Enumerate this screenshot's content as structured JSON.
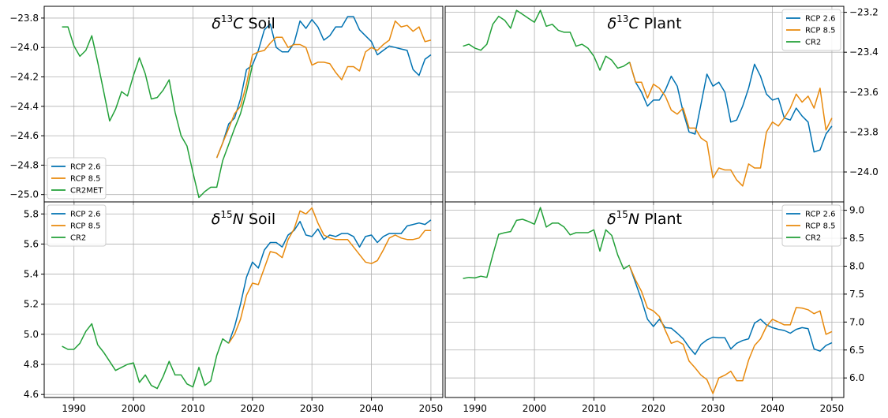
{
  "chart_data": [
    {
      "type": "line",
      "title": {
        "sym": "δ",
        "sup": "13",
        "elem": "C",
        "rest": " Soil"
      },
      "xlim": [
        1985,
        2052
      ],
      "ylim": [
        -25.05,
        -23.72
      ],
      "yticks": [
        -25.0,
        -24.8,
        -24.6,
        -24.4,
        -24.2,
        -24.0,
        -23.8
      ],
      "ytick_labels": [
        "−25.0",
        "−24.8",
        "−24.6",
        "−24.4",
        "−24.2",
        "−24.0",
        "−23.8"
      ],
      "yaxis_side": "left",
      "show_xticklabels": false,
      "grid": true,
      "legend_position": "lower-left",
      "legend": [
        "RCP 2.6",
        "RCP 8.5",
        "CR2MET"
      ],
      "series": [
        {
          "name": "RCP 2.6",
          "color": "#0072B2",
          "x": [
            2014,
            2015,
            2016,
            2017,
            2018,
            2019,
            2020,
            2021,
            2022,
            2023,
            2024,
            2025,
            2026,
            2027,
            2028,
            2029,
            2030,
            2031,
            2032,
            2033,
            2034,
            2035,
            2036,
            2037,
            2038,
            2039,
            2040,
            2041,
            2042,
            2043,
            2044,
            2045,
            2046,
            2047,
            2048,
            2049,
            2050
          ],
          "y": [
            -24.75,
            -24.65,
            -24.52,
            -24.48,
            -24.35,
            -24.15,
            -24.12,
            -24.02,
            -23.88,
            -23.84,
            -24.0,
            -24.03,
            -24.03,
            -23.97,
            -23.82,
            -23.87,
            -23.81,
            -23.86,
            -23.95,
            -23.92,
            -23.86,
            -23.86,
            -23.79,
            -23.79,
            -23.88,
            -23.92,
            -23.96,
            -24.05,
            -24.02,
            -23.99,
            -24.0,
            -24.01,
            -24.02,
            -24.15,
            -24.19,
            -24.08,
            -24.05
          ]
        },
        {
          "name": "RCP 8.5",
          "color": "#E8890C",
          "x": [
            2014,
            2015,
            2016,
            2017,
            2018,
            2019,
            2020,
            2021,
            2022,
            2023,
            2024,
            2025,
            2026,
            2027,
            2028,
            2029,
            2030,
            2031,
            2032,
            2033,
            2034,
            2035,
            2036,
            2037,
            2038,
            2039,
            2040,
            2041,
            2042,
            2043,
            2044,
            2045,
            2046,
            2047,
            2048,
            2049,
            2050
          ],
          "y": [
            -24.75,
            -24.65,
            -24.55,
            -24.45,
            -24.4,
            -24.25,
            -24.05,
            -24.03,
            -24.02,
            -23.97,
            -23.93,
            -23.93,
            -24.0,
            -23.98,
            -23.98,
            -24.0,
            -24.12,
            -24.1,
            -24.1,
            -24.11,
            -24.17,
            -24.22,
            -24.13,
            -24.13,
            -24.16,
            -24.03,
            -24.0,
            -24.02,
            -23.98,
            -23.95,
            -23.82,
            -23.86,
            -23.85,
            -23.89,
            -23.86,
            -23.96,
            -23.95
          ]
        },
        {
          "name": "CR2MET",
          "color": "#22A038",
          "x": [
            1988,
            1989,
            1990,
            1991,
            1992,
            1993,
            1994,
            1995,
            1996,
            1997,
            1998,
            1999,
            2000,
            2001,
            2002,
            2003,
            2004,
            2005,
            2006,
            2007,
            2008,
            2009,
            2010,
            2011,
            2012,
            2013,
            2014,
            2015,
            2016,
            2017,
            2018,
            2019,
            2020
          ],
          "y": [
            -23.86,
            -23.86,
            -23.99,
            -24.06,
            -24.02,
            -23.92,
            -24.1,
            -24.3,
            -24.5,
            -24.42,
            -24.3,
            -24.33,
            -24.19,
            -24.07,
            -24.18,
            -24.35,
            -24.34,
            -24.29,
            -24.22,
            -24.44,
            -24.6,
            -24.67,
            -24.85,
            -25.02,
            -24.98,
            -24.95,
            -24.95,
            -24.77,
            -24.66,
            -24.55,
            -24.45,
            -24.3,
            -24.12
          ]
        }
      ]
    },
    {
      "type": "line",
      "title": {
        "sym": "δ",
        "sup": "13",
        "elem": "C",
        "rest": " Plant"
      },
      "xlim": [
        1985,
        2052
      ],
      "ylim": [
        -24.15,
        -23.17
      ],
      "yticks": [
        -24.0,
        -23.8,
        -23.6,
        -23.4,
        -23.2
      ],
      "ytick_labels": [
        "−24.0",
        "−23.8",
        "−23.6",
        "−23.4",
        "−23.2"
      ],
      "yaxis_side": "right",
      "show_xticklabels": false,
      "grid": true,
      "legend_position": "top-right",
      "legend": [
        "RCP 2.6",
        "RCP 8.5",
        "CR2"
      ],
      "series": [
        {
          "name": "RCP 2.6",
          "color": "#0072B2",
          "x": [
            2016,
            2017,
            2018,
            2019,
            2020,
            2021,
            2022,
            2023,
            2024,
            2025,
            2026,
            2027,
            2028,
            2029,
            2030,
            2031,
            2032,
            2033,
            2034,
            2035,
            2036,
            2037,
            2038,
            2039,
            2040,
            2041,
            2042,
            2043,
            2044,
            2045,
            2046,
            2047,
            2048,
            2049,
            2050
          ],
          "y": [
            -23.45,
            -23.55,
            -23.6,
            -23.67,
            -23.64,
            -23.64,
            -23.59,
            -23.52,
            -23.57,
            -23.7,
            -23.8,
            -23.81,
            -23.66,
            -23.51,
            -23.57,
            -23.55,
            -23.6,
            -23.75,
            -23.74,
            -23.67,
            -23.58,
            -23.46,
            -23.52,
            -23.61,
            -23.64,
            -23.63,
            -23.73,
            -23.74,
            -23.68,
            -23.72,
            -23.75,
            -23.9,
            -23.89,
            -23.81,
            -23.77
          ]
        },
        {
          "name": "RCP 8.5",
          "color": "#E8890C",
          "x": [
            2016,
            2017,
            2018,
            2019,
            2020,
            2021,
            2022,
            2023,
            2024,
            2025,
            2026,
            2027,
            2028,
            2029,
            2030,
            2031,
            2032,
            2033,
            2034,
            2035,
            2036,
            2037,
            2038,
            2039,
            2040,
            2041,
            2042,
            2043,
            2044,
            2045,
            2046,
            2047,
            2048,
            2049,
            2050
          ],
          "y": [
            -23.45,
            -23.55,
            -23.55,
            -23.63,
            -23.56,
            -23.58,
            -23.62,
            -23.69,
            -23.71,
            -23.68,
            -23.78,
            -23.78,
            -23.83,
            -23.85,
            -24.03,
            -23.98,
            -23.99,
            -23.99,
            -24.04,
            -24.07,
            -23.96,
            -23.98,
            -23.98,
            -23.8,
            -23.75,
            -23.77,
            -23.73,
            -23.68,
            -23.61,
            -23.65,
            -23.62,
            -23.68,
            -23.58,
            -23.79,
            -23.73
          ]
        },
        {
          "name": "CR2",
          "color": "#22A038",
          "x": [
            1988,
            1989,
            1990,
            1991,
            1992,
            1993,
            1994,
            1995,
            1996,
            1997,
            1998,
            1999,
            2000,
            2001,
            2002,
            2003,
            2004,
            2005,
            2006,
            2007,
            2008,
            2009,
            2010,
            2011,
            2012,
            2013,
            2014,
            2015,
            2016
          ],
          "y": [
            -23.37,
            -23.36,
            -23.38,
            -23.39,
            -23.36,
            -23.26,
            -23.22,
            -23.24,
            -23.28,
            -23.19,
            -23.21,
            -23.23,
            -23.25,
            -23.19,
            -23.27,
            -23.26,
            -23.29,
            -23.3,
            -23.3,
            -23.37,
            -23.36,
            -23.38,
            -23.42,
            -23.49,
            -23.42,
            -23.44,
            -23.48,
            -23.47,
            -23.45
          ]
        }
      ]
    },
    {
      "type": "line",
      "title": {
        "sym": "δ",
        "sup": "15",
        "elem": "N",
        "rest": " Soil"
      },
      "xlim": [
        1985,
        2052
      ],
      "ylim": [
        4.58,
        5.88
      ],
      "yticks": [
        4.6,
        4.8,
        5.0,
        5.2,
        5.4,
        5.6,
        5.8
      ],
      "ytick_labels": [
        "4.6",
        "4.8",
        "5.0",
        "5.2",
        "5.4",
        "5.6",
        "5.8"
      ],
      "yaxis_side": "left",
      "show_xticklabels": true,
      "xticks": [
        1990,
        2000,
        2010,
        2020,
        2030,
        2040,
        2050
      ],
      "grid": true,
      "legend_position": "top-left",
      "legend": [
        "RCP 2.6",
        "RCP 8.5",
        "CR2"
      ],
      "series": [
        {
          "name": "RCP 2.6",
          "color": "#0072B2",
          "x": [
            2016,
            2017,
            2018,
            2019,
            2020,
            2021,
            2022,
            2023,
            2024,
            2025,
            2026,
            2027,
            2028,
            2029,
            2030,
            2031,
            2032,
            2033,
            2034,
            2035,
            2036,
            2037,
            2038,
            2039,
            2040,
            2041,
            2042,
            2043,
            2044,
            2045,
            2046,
            2047,
            2048,
            2049,
            2050
          ],
          "y": [
            4.94,
            5.05,
            5.2,
            5.38,
            5.48,
            5.44,
            5.56,
            5.61,
            5.61,
            5.58,
            5.66,
            5.69,
            5.75,
            5.66,
            5.65,
            5.7,
            5.63,
            5.66,
            5.65,
            5.67,
            5.67,
            5.65,
            5.58,
            5.65,
            5.66,
            5.61,
            5.65,
            5.67,
            5.67,
            5.67,
            5.72,
            5.73,
            5.74,
            5.73,
            5.76
          ]
        },
        {
          "name": "RCP 8.5",
          "color": "#E8890C",
          "x": [
            2016,
            2017,
            2018,
            2019,
            2020,
            2021,
            2022,
            2023,
            2024,
            2025,
            2026,
            2027,
            2028,
            2029,
            2030,
            2031,
            2032,
            2033,
            2034,
            2035,
            2036,
            2037,
            2038,
            2039,
            2040,
            2041,
            2042,
            2043,
            2044,
            2045,
            2046,
            2047,
            2048,
            2049,
            2050
          ],
          "y": [
            4.94,
            5.0,
            5.1,
            5.26,
            5.34,
            5.33,
            5.44,
            5.55,
            5.54,
            5.51,
            5.63,
            5.7,
            5.82,
            5.8,
            5.84,
            5.74,
            5.66,
            5.64,
            5.63,
            5.63,
            5.63,
            5.58,
            5.53,
            5.48,
            5.47,
            5.49,
            5.56,
            5.64,
            5.66,
            5.64,
            5.63,
            5.63,
            5.64,
            5.69,
            5.69
          ]
        },
        {
          "name": "CR2",
          "color": "#22A038",
          "x": [
            1988,
            1989,
            1990,
            1991,
            1992,
            1993,
            1994,
            1995,
            1996,
            1997,
            1998,
            1999,
            2000,
            2001,
            2002,
            2003,
            2004,
            2005,
            2006,
            2007,
            2008,
            2009,
            2010,
            2011,
            2012,
            2013,
            2014,
            2015,
            2016
          ],
          "y": [
            4.92,
            4.9,
            4.9,
            4.94,
            5.02,
            5.07,
            4.93,
            4.88,
            4.82,
            4.76,
            4.78,
            4.8,
            4.81,
            4.68,
            4.73,
            4.66,
            4.64,
            4.72,
            4.82,
            4.73,
            4.73,
            4.67,
            4.65,
            4.78,
            4.66,
            4.69,
            4.86,
            4.97,
            4.94
          ]
        }
      ]
    },
    {
      "type": "line",
      "title": {
        "sym": "δ",
        "sup": "15",
        "elem": "N",
        "rest": " Plant"
      },
      "xlim": [
        1985,
        2052
      ],
      "ylim": [
        5.65,
        9.15
      ],
      "yticks": [
        6.0,
        6.5,
        7.0,
        7.5,
        8.0,
        8.5,
        9.0
      ],
      "ytick_labels": [
        "6.0",
        "6.5",
        "7.0",
        "7.5",
        "8.0",
        "8.5",
        "9.0"
      ],
      "yaxis_side": "right",
      "show_xticklabels": true,
      "xticks": [
        1990,
        2000,
        2010,
        2020,
        2030,
        2040,
        2050
      ],
      "grid": true,
      "legend_position": "top-right",
      "legend": [
        "RCP 2.6",
        "RCP 8.5",
        "CR2"
      ],
      "series": [
        {
          "name": "RCP 2.6",
          "color": "#0072B2",
          "x": [
            2016,
            2017,
            2018,
            2019,
            2020,
            2021,
            2022,
            2023,
            2024,
            2025,
            2026,
            2027,
            2028,
            2029,
            2030,
            2031,
            2032,
            2033,
            2034,
            2035,
            2036,
            2037,
            2038,
            2039,
            2040,
            2041,
            2042,
            2043,
            2044,
            2045,
            2046,
            2047,
            2048,
            2049,
            2050
          ],
          "y": [
            8.0,
            7.7,
            7.4,
            7.05,
            6.92,
            7.05,
            6.9,
            6.89,
            6.8,
            6.7,
            6.55,
            6.42,
            6.6,
            6.68,
            6.73,
            6.72,
            6.72,
            6.52,
            6.62,
            6.67,
            6.7,
            6.98,
            7.05,
            6.95,
            6.9,
            6.87,
            6.85,
            6.8,
            6.87,
            6.9,
            6.88,
            6.52,
            6.48,
            6.58,
            6.63
          ]
        },
        {
          "name": "RCP 8.5",
          "color": "#E8890C",
          "x": [
            2016,
            2017,
            2018,
            2019,
            2020,
            2021,
            2022,
            2023,
            2024,
            2025,
            2026,
            2027,
            2028,
            2029,
            2030,
            2031,
            2032,
            2033,
            2034,
            2035,
            2036,
            2037,
            2038,
            2039,
            2040,
            2041,
            2042,
            2043,
            2044,
            2045,
            2046,
            2047,
            2048,
            2049,
            2050
          ],
          "y": [
            8.0,
            7.75,
            7.55,
            7.25,
            7.2,
            7.1,
            6.85,
            6.62,
            6.66,
            6.6,
            6.3,
            6.18,
            6.05,
            5.97,
            5.72,
            6.0,
            6.05,
            6.12,
            5.95,
            5.95,
            6.32,
            6.58,
            6.7,
            6.92,
            7.05,
            7.0,
            6.95,
            6.95,
            7.26,
            7.25,
            7.22,
            7.15,
            7.2,
            6.78,
            6.83
          ]
        },
        {
          "name": "CR2",
          "color": "#22A038",
          "x": [
            1988,
            1989,
            1990,
            1991,
            1992,
            1993,
            1994,
            1995,
            1996,
            1997,
            1998,
            1999,
            2000,
            2001,
            2002,
            2003,
            2004,
            2005,
            2006,
            2007,
            2008,
            2009,
            2010,
            2011,
            2012,
            2013,
            2014,
            2015,
            2016
          ],
          "y": [
            7.78,
            7.8,
            7.79,
            7.82,
            7.8,
            8.2,
            8.57,
            8.6,
            8.62,
            8.82,
            8.84,
            8.8,
            8.75,
            9.05,
            8.7,
            8.77,
            8.77,
            8.7,
            8.56,
            8.6,
            8.6,
            8.6,
            8.65,
            8.27,
            8.65,
            8.55,
            8.2,
            7.95,
            8.02
          ]
        }
      ]
    }
  ]
}
